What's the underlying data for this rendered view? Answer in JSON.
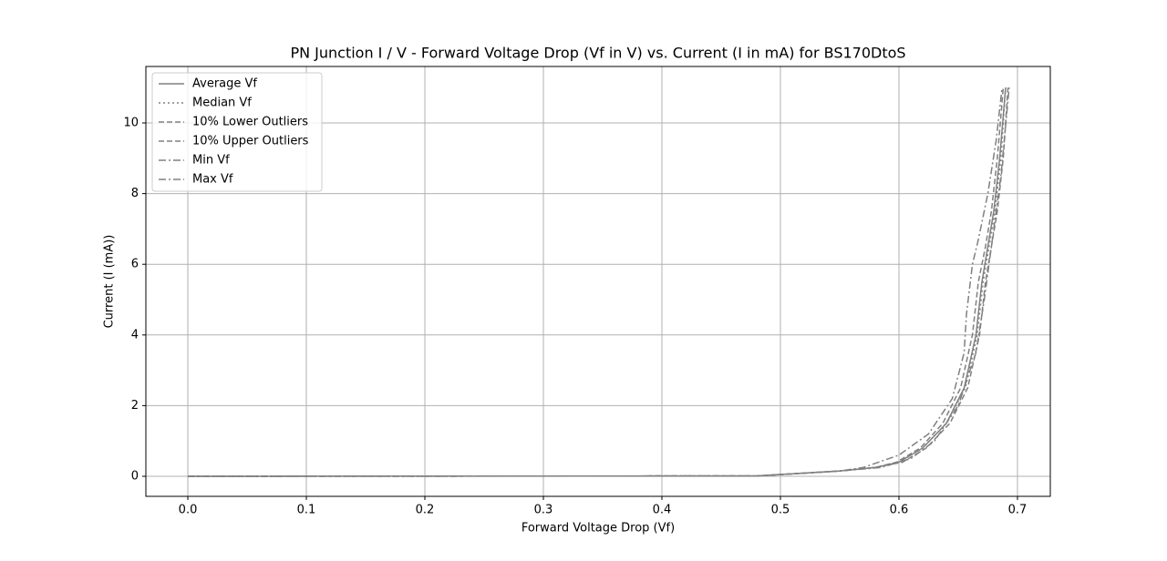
{
  "chart_data": {
    "type": "line",
    "title": "PN Junction I / V - Forward Voltage Drop (Vf in V) vs. Current (I in mA) for BS170DtoS",
    "x_label": "Forward Voltage Drop (Vf)",
    "y_label": "Current (I (mA))",
    "xlim": [
      -0.0354,
      0.7277
    ],
    "ylim": [
      -0.567,
      11.598
    ],
    "xticks": [
      {
        "value": 0,
        "label": "0.0"
      },
      0.1,
      0.2,
      0.3,
      0.4,
      0.5,
      0.6,
      0.7
    ],
    "yticks": [
      0,
      2,
      4,
      6,
      8,
      10
    ],
    "grid": true,
    "legend": "upper-left",
    "series": [
      {
        "name": "Average Vf",
        "color": "#808080",
        "linestyle": "solid",
        "x": [
          0,
          0.48,
          0.5,
          0.55,
          0.58,
          0.6,
          0.62,
          0.64,
          0.655,
          0.665,
          0.67,
          0.675,
          0.68,
          0.685,
          0.69
        ],
        "values": [
          0,
          0.01,
          0.05,
          0.15,
          0.25,
          0.4,
          0.8,
          1.5,
          2.5,
          4,
          5.5,
          6.5,
          7.5,
          9,
          11
        ]
      },
      {
        "name": "Median Vf",
        "color": "#808080",
        "linestyle": "dotted",
        "x": [
          0,
          0.48,
          0.5,
          0.55,
          0.58,
          0.6,
          0.62,
          0.64,
          0.656,
          0.666,
          0.671,
          0.676,
          0.681,
          0.686,
          0.69
        ],
        "values": [
          0,
          0.01,
          0.05,
          0.15,
          0.25,
          0.4,
          0.8,
          1.5,
          2.5,
          4,
          5.5,
          6.5,
          7.5,
          9,
          11
        ]
      },
      {
        "name": "10% Lower Outliers",
        "color": "#808080",
        "linestyle": "dashed",
        "x": [
          0,
          0.48,
          0.5,
          0.55,
          0.58,
          0.598,
          0.618,
          0.637,
          0.652,
          0.662,
          0.667,
          0.673,
          0.678,
          0.683,
          0.688
        ],
        "values": [
          0,
          0.01,
          0.05,
          0.15,
          0.25,
          0.4,
          0.8,
          1.5,
          2.5,
          4,
          5.5,
          6.5,
          7.5,
          9,
          11
        ]
      },
      {
        "name": "10% Upper Outliers",
        "color": "#808080",
        "linestyle": "dashed",
        "x": [
          0,
          0.48,
          0.5,
          0.55,
          0.58,
          0.603,
          0.623,
          0.643,
          0.658,
          0.668,
          0.673,
          0.678,
          0.683,
          0.688,
          0.692
        ],
        "values": [
          0,
          0.01,
          0.05,
          0.15,
          0.25,
          0.4,
          0.8,
          1.5,
          2.5,
          4,
          5.5,
          6.5,
          7.5,
          9,
          11
        ]
      },
      {
        "name": "Min Vf",
        "color": "#808080",
        "linestyle": "dashdot",
        "x": [
          0,
          0.48,
          0.5,
          0.55,
          0.57,
          0.6,
          0.625,
          0.645,
          0.655,
          0.657,
          0.662,
          0.667,
          0.675,
          0.682,
          0.687
        ],
        "values": [
          0,
          0.01,
          0.05,
          0.15,
          0.25,
          0.6,
          1.2,
          2.2,
          3.5,
          4.6,
          6,
          6.7,
          8,
          9.5,
          11
        ]
      },
      {
        "name": "Max Vf",
        "color": "#808080",
        "linestyle": "dashdot",
        "x": [
          0,
          0.48,
          0.5,
          0.55,
          0.585,
          0.61,
          0.63,
          0.65,
          0.665,
          0.672,
          0.678,
          0.686,
          0.693
        ],
        "values": [
          0,
          0.01,
          0.05,
          0.15,
          0.25,
          0.5,
          1,
          2,
          3.5,
          5,
          6.5,
          8.5,
          11
        ]
      }
    ]
  }
}
